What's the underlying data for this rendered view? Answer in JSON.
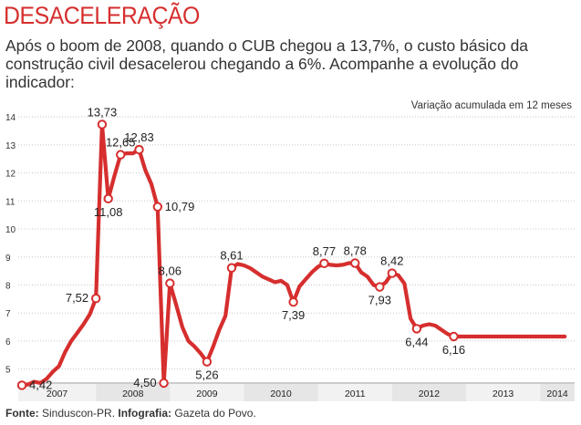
{
  "header": {
    "title": "DESACELERAÇÃO",
    "subtitle": "Após o boom de 2008, quando o CUB chegou a 13,7%, o custo básico da construção civil desacelerou chegando a 6%. Acompanhe a evolução do indicador:"
  },
  "note": "Variação acumulada em 12 meses",
  "footer": {
    "source_label": "Fonte:",
    "source_value": "Sinduscon-PR.",
    "infographic_label": "Infografia:",
    "infographic_value": "Gazeta do Povo."
  },
  "colors": {
    "line": "#d62e2e",
    "grid": "#c8c8c8",
    "band_a": "#e6e6e6",
    "band_b": "#f2f2f2"
  },
  "chart_data": {
    "type": "line",
    "title": "DESACELERAÇÃO",
    "ylabel": "Variação acumulada em 12 meses",
    "xlabel": "",
    "ylim": [
      4.5,
      14.2
    ],
    "yticks": [
      5,
      6,
      7,
      8,
      9,
      10,
      11,
      12,
      13,
      14
    ],
    "xlim": [
      0,
      89
    ],
    "grid": true,
    "years": [
      {
        "label": "2007",
        "start": 0,
        "end": 12
      },
      {
        "label": "2008",
        "start": 12,
        "end": 24
      },
      {
        "label": "2009",
        "start": 24,
        "end": 36
      },
      {
        "label": "2010",
        "start": 36,
        "end": 48
      },
      {
        "label": "2011",
        "start": 48,
        "end": 60
      },
      {
        "label": "2012",
        "start": 60,
        "end": 72
      },
      {
        "label": "2013",
        "start": 72,
        "end": 84
      },
      {
        "label": "2014",
        "start": 84,
        "end": 89
      }
    ],
    "series": [
      {
        "name": "CUB",
        "x": [
          0,
          1,
          2,
          3,
          4,
          5,
          6,
          7,
          8,
          9,
          10,
          11,
          12,
          13,
          14,
          15,
          16,
          17,
          18,
          19,
          20,
          21,
          22,
          23,
          24,
          25,
          26,
          27,
          28,
          29,
          30,
          31,
          32,
          33,
          34,
          35,
          36,
          37,
          38,
          39,
          40,
          41,
          42,
          43,
          44,
          45,
          46,
          47,
          48,
          49,
          50,
          51,
          52,
          53,
          54,
          55,
          56,
          57,
          58,
          59,
          60,
          61,
          62,
          63,
          64,
          65,
          66,
          67,
          68,
          69,
          70,
          71,
          72,
          73,
          74,
          75,
          76,
          77,
          78,
          79,
          80,
          81,
          82,
          83,
          84,
          85,
          86,
          87,
          88
        ],
        "y": [
          4.42,
          4.45,
          4.55,
          4.5,
          4.65,
          4.9,
          5.1,
          5.6,
          6.0,
          6.3,
          6.6,
          6.95,
          7.52,
          13.73,
          11.08,
          11.9,
          12.65,
          12.7,
          12.7,
          12.83,
          12.1,
          11.6,
          10.79,
          4.5,
          8.06,
          7.3,
          6.5,
          6.0,
          5.8,
          5.55,
          5.26,
          5.8,
          6.4,
          6.9,
          8.61,
          8.75,
          8.7,
          8.6,
          8.45,
          8.3,
          8.2,
          8.1,
          8.15,
          8.0,
          7.39,
          7.95,
          8.2,
          8.45,
          8.65,
          8.77,
          8.72,
          8.7,
          8.72,
          8.78,
          8.78,
          8.45,
          8.3,
          8.0,
          7.93,
          8.1,
          8.42,
          8.35,
          8.05,
          6.8,
          6.44,
          6.55,
          6.6,
          6.55,
          6.4,
          6.25,
          6.16,
          6.16,
          6.16,
          6.16,
          6.16,
          6.16,
          6.16,
          6.16,
          6.16,
          6.16,
          6.16,
          6.16,
          6.16,
          6.16,
          6.16,
          6.16,
          6.16,
          6.16,
          6.16
        ]
      }
    ],
    "annotations": [
      {
        "x": 0,
        "value": 4.42,
        "text": "4,42",
        "pos": "right"
      },
      {
        "x": 12,
        "value": 7.52,
        "text": "7,52",
        "pos": "left"
      },
      {
        "x": 13,
        "value": 13.73,
        "text": "13,73",
        "pos": "above"
      },
      {
        "x": 16,
        "value": 12.65,
        "text": "12,65",
        "pos": "above"
      },
      {
        "x": 14,
        "value": 11.08,
        "text": "11,08",
        "pos": "below"
      },
      {
        "x": 19,
        "value": 12.83,
        "text": "12,83",
        "pos": "above"
      },
      {
        "x": 22,
        "value": 10.79,
        "text": "10,79",
        "pos": "right"
      },
      {
        "x": 23,
        "value": 4.5,
        "text": "4,50",
        "pos": "left"
      },
      {
        "x": 24,
        "value": 8.06,
        "text": "8,06",
        "pos": "above"
      },
      {
        "x": 30,
        "value": 5.26,
        "text": "5,26",
        "pos": "below"
      },
      {
        "x": 34,
        "value": 8.61,
        "text": "8,61",
        "pos": "above"
      },
      {
        "x": 44,
        "value": 7.39,
        "text": "7,39",
        "pos": "below"
      },
      {
        "x": 49,
        "value": 8.77,
        "text": "8,77",
        "pos": "above"
      },
      {
        "x": 54,
        "value": 8.78,
        "text": "8,78",
        "pos": "above"
      },
      {
        "x": 58,
        "value": 7.93,
        "text": "7,93",
        "pos": "below"
      },
      {
        "x": 60,
        "value": 8.42,
        "text": "8,42",
        "pos": "above"
      },
      {
        "x": 64,
        "value": 6.44,
        "text": "6,44",
        "pos": "below"
      },
      {
        "x": 70,
        "value": 6.16,
        "text": "6,16",
        "pos": "below"
      }
    ]
  }
}
